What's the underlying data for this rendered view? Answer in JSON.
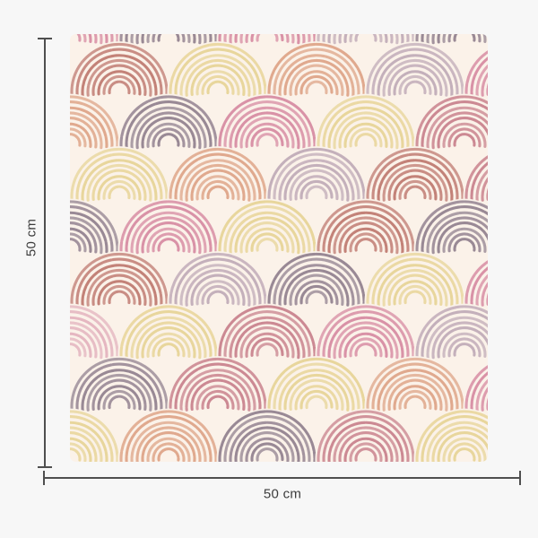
{
  "page": {
    "background": "#f7f7f7"
  },
  "dimension_annotations": {
    "height_label": "50 cm",
    "width_label": "50 cm",
    "line_color": "#4f4f4f",
    "text_color": "#3d3d3d"
  },
  "swatch": {
    "description": "seamless scallop pattern of hand-drawn chalky rainbow arcs on cream",
    "background": "#fbf2e9",
    "palette": {
      "terracotta": "#bd756c",
      "salmon": "#dda184",
      "pale_yellow": "#e6d394",
      "purple_gray": "#8e7d8c",
      "pink": "#d587a0",
      "dusty_rose": "#c67d89",
      "light_mauve": "#bea8b6",
      "light_pink": "#e2b0bc"
    },
    "grid": {
      "rows": [
        {
          "offset": "B",
          "colors": [
            "pink",
            "purple_gray",
            "pink",
            "light_mauve",
            "purple_gray"
          ]
        },
        {
          "offset": "A",
          "colors": [
            "terracotta",
            "pale_yellow",
            "salmon",
            "light_mauve",
            "pink"
          ]
        },
        {
          "offset": "B",
          "colors": [
            "salmon",
            "purple_gray",
            "pink",
            "pale_yellow",
            "dusty_rose"
          ]
        },
        {
          "offset": "A",
          "colors": [
            "pale_yellow",
            "salmon",
            "light_mauve",
            "terracotta",
            "dusty_rose"
          ]
        },
        {
          "offset": "B",
          "colors": [
            "purple_gray",
            "pink",
            "pale_yellow",
            "terracotta",
            "purple_gray"
          ]
        },
        {
          "offset": "A",
          "colors": [
            "terracotta",
            "light_mauve",
            "purple_gray",
            "pale_yellow",
            "pink"
          ]
        },
        {
          "offset": "B",
          "colors": [
            "light_pink",
            "pale_yellow",
            "dusty_rose",
            "pink",
            "light_mauve"
          ]
        },
        {
          "offset": "A",
          "colors": [
            "purple_gray",
            "dusty_rose",
            "pale_yellow",
            "salmon",
            "pink"
          ]
        },
        {
          "offset": "B",
          "colors": [
            "pale_yellow",
            "salmon",
            "purple_gray",
            "dusty_rose",
            "pale_yellow"
          ]
        }
      ]
    }
  }
}
